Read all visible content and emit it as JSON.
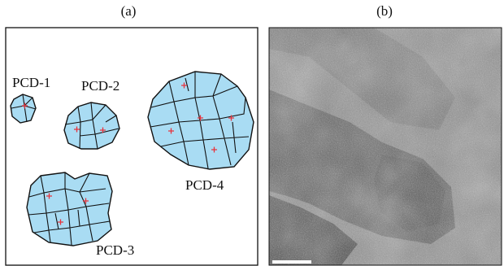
{
  "panels": {
    "a": {
      "label": "(a)"
    },
    "b": {
      "label": "(b)"
    }
  },
  "particles": [
    {
      "name": "PCD-1",
      "label": "PCD-1"
    },
    {
      "name": "PCD-2",
      "label": "PCD-2"
    },
    {
      "name": "PCD-3",
      "label": "PCD-3"
    },
    {
      "name": "PCD-4",
      "label": "PCD-4"
    }
  ],
  "colors": {
    "particle_fill": "#a9dcf3",
    "grain_boundary": "#111111",
    "center_marker": "#e8323c",
    "tem_background": "#8e8e8e",
    "scale_bar": "#ffffff"
  }
}
